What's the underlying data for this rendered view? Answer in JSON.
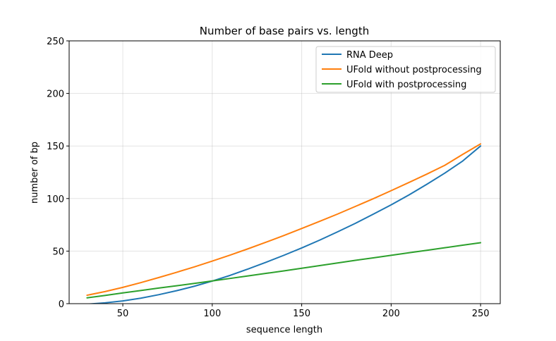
{
  "chart_data": {
    "type": "line",
    "title": "Number of base pairs vs. length",
    "xlabel": "sequence length",
    "ylabel": "number of bp",
    "xlim": [
      20,
      261
    ],
    "ylim": [
      0,
      250
    ],
    "xticks": [
      "50",
      "100",
      "150",
      "200",
      "250"
    ],
    "yticks": [
      "0",
      "50",
      "100",
      "150",
      "200",
      "250"
    ],
    "grid": true,
    "legend_position": "upper-right",
    "x": [
      30,
      40,
      50,
      60,
      70,
      80,
      90,
      100,
      110,
      120,
      130,
      140,
      150,
      160,
      170,
      180,
      190,
      200,
      210,
      220,
      230,
      240,
      250
    ],
    "series": [
      {
        "name": "RNA Deep",
        "color": "#1f77b4",
        "values": [
          -0.5,
          0.8,
          2.6,
          5.2,
          8.5,
          12.3,
          16.6,
          21.5,
          26.9,
          33.0,
          39.3,
          46.0,
          53.0,
          60.4,
          68.3,
          76.4,
          85.1,
          94.0,
          103.5,
          113.6,
          124.2,
          135.7,
          150.0
        ]
      },
      {
        "name": "UFold without postprocessing",
        "color": "#ff7f0e",
        "values": [
          8.0,
          11.5,
          15.5,
          20.0,
          24.8,
          29.8,
          35.0,
          40.5,
          46.2,
          52.2,
          58.4,
          64.8,
          71.5,
          78.3,
          85.2,
          92.5,
          99.8,
          107.5,
          115.3,
          123.3,
          131.6,
          142.0,
          152.0
        ]
      },
      {
        "name": "UFold with postprocessing",
        "color": "#2ca02c",
        "values": [
          5.5,
          7.8,
          10.2,
          12.5,
          14.8,
          17.0,
          19.3,
          21.6,
          24.0,
          26.4,
          28.8,
          31.2,
          33.7,
          36.2,
          38.7,
          41.2,
          43.6,
          46.0,
          48.4,
          50.8,
          53.2,
          55.6,
          58.0
        ]
      }
    ]
  }
}
